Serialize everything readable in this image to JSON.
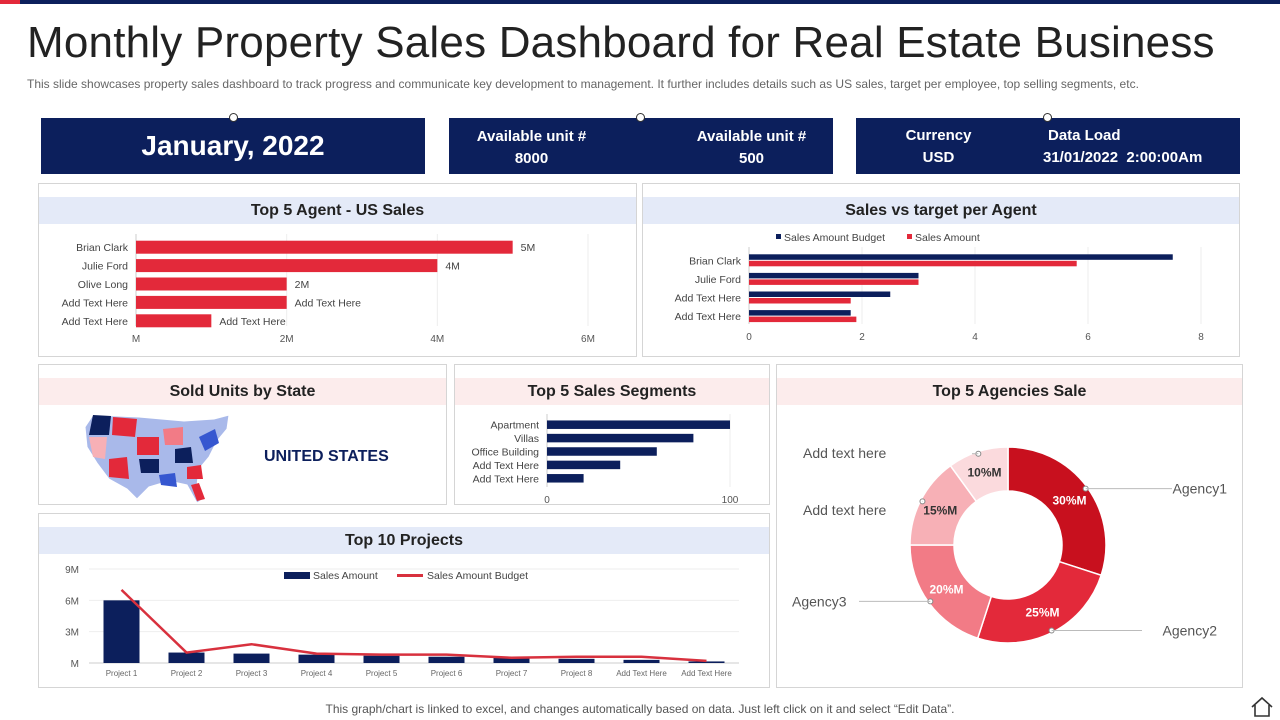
{
  "title": "Monthly Property Sales Dashboard for Real Estate Business",
  "subtitle": "This slide showcases property sales dashboard to track progress and communicate key development  to management. It further includes details such as US sales, target per employee, top selling segments, etc.",
  "kpi": {
    "month": "January, 2022",
    "avail1_label": "Available unit #",
    "avail1_value": "8000",
    "avail2_label": "Available unit #",
    "avail2_value": "500",
    "currency_label": "Currency",
    "currency_value": "USD",
    "dataload_label": "Data Load",
    "dataload_value": "31/01/2022  2:00:00Am"
  },
  "colors": {
    "navy": "#0c1f5c",
    "red": "#e3293a",
    "dark_red": "#c8101e",
    "pink": "#f27b86",
    "light_pink": "#f7b0b6",
    "pale_pink": "#fbdadd"
  },
  "map": {
    "title": "Sold Units by State",
    "label": "UNITED STATES"
  },
  "footer": "This graph/chart is linked to excel, and changes automatically based on data. Just left click on it and select “Edit Data”.",
  "icons": {
    "home": "home-icon"
  },
  "chart_data": [
    {
      "id": "us_sales",
      "type": "bar",
      "orientation": "horizontal",
      "title": "Top 5 Agent - US Sales",
      "categories": [
        "Brian Clark",
        "Julie Ford",
        "Olive Long",
        "Add Text Here",
        "Add Text Here"
      ],
      "values": [
        5,
        4,
        2,
        2,
        1
      ],
      "data_labels": [
        "5M",
        "4M",
        "2M",
        "Add Text Here",
        "Add Text Here"
      ],
      "xticks": [
        "M",
        "2M",
        "4M",
        "6M"
      ],
      "xlim": [
        0,
        6
      ],
      "unit": "M"
    },
    {
      "id": "target",
      "type": "bar",
      "orientation": "horizontal",
      "title": "Sales vs target per Agent",
      "categories": [
        "Brian Clark",
        "Julie Ford",
        "Add Text Here",
        "Add Text Here"
      ],
      "series": [
        {
          "name": "Sales Amount Budget",
          "values": [
            7.5,
            3,
            2.5,
            1.8
          ]
        },
        {
          "name": "Sales Amount",
          "values": [
            5.8,
            3,
            1.8,
            1.9
          ]
        }
      ],
      "xticks": [
        "0",
        "2",
        "4",
        "6",
        "8"
      ],
      "xlim": [
        0,
        8
      ],
      "legend": "top"
    },
    {
      "id": "segments",
      "type": "bar",
      "orientation": "horizontal",
      "title": "Top 5 Sales Segments",
      "categories": [
        "Apartment",
        "Villas",
        "Office Building",
        "Add Text Here",
        "Add Text Here"
      ],
      "values": [
        100,
        80,
        60,
        40,
        20
      ],
      "xticks": [
        "0",
        "100"
      ],
      "xlim": [
        0,
        100
      ]
    },
    {
      "id": "projects",
      "type": "bar",
      "title": "Top 10 Projects",
      "categories": [
        "Project 1",
        "Project 2",
        "Project 3",
        "Project 4",
        "Project 5",
        "Project 6",
        "Project 7",
        "Project 8",
        "Add Text Here",
        "Add Text Here"
      ],
      "series": [
        {
          "name": "Sales Amount",
          "type": "bar",
          "values": [
            6,
            1,
            0.9,
            0.8,
            0.7,
            0.6,
            0.5,
            0.4,
            0.3,
            0.15
          ]
        },
        {
          "name": "Sales Amount Budget",
          "type": "line",
          "values": [
            7,
            1,
            1.8,
            0.9,
            0.8,
            0.8,
            0.5,
            0.6,
            0.6,
            0.2
          ]
        }
      ],
      "yticks": [
        "M",
        "3M",
        "6M",
        "9M"
      ],
      "ylim": [
        0,
        9
      ],
      "legend": "top"
    },
    {
      "id": "agencies",
      "type": "pie",
      "donut": true,
      "title": "Top 5 Agencies Sale",
      "labels": [
        "Agency1",
        "Agency2",
        "Agency3",
        "Add text here",
        "Add text here"
      ],
      "values": [
        30,
        25,
        20,
        15,
        10
      ],
      "data_labels": [
        "30%M",
        "25%M",
        "20%M",
        "15%M",
        "10%M"
      ]
    }
  ]
}
